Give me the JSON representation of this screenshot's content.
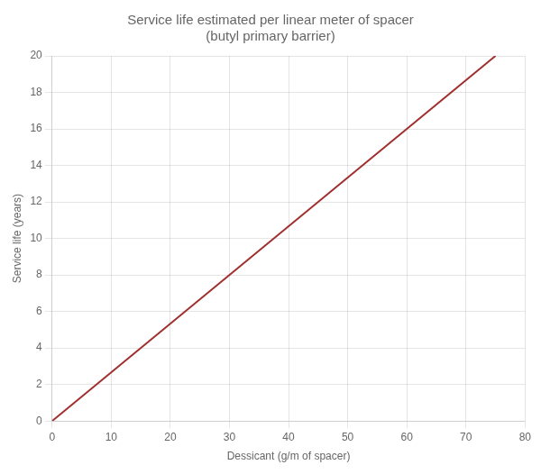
{
  "chart_data": {
    "type": "line",
    "title": "Service life estimated per linear meter of spacer\n(butyl primary barrier)",
    "xlabel": "Dessicant (g/m of spacer)",
    "ylabel": "Service life (years)",
    "x": [
      0,
      75
    ],
    "values": [
      0,
      20
    ],
    "color": "#a03030",
    "xlim": [
      0,
      80
    ],
    "xticks": [
      0,
      10,
      20,
      30,
      40,
      50,
      60,
      70,
      80
    ],
    "ylim": [
      0,
      20
    ],
    "yticks": [
      0,
      2,
      4,
      6,
      8,
      10,
      12,
      14,
      16,
      18,
      20
    ],
    "grid": true
  }
}
